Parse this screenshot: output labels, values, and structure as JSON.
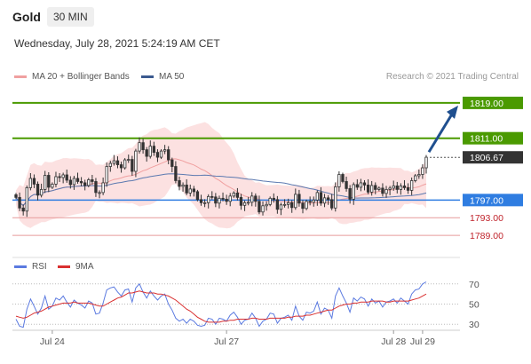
{
  "header": {
    "symbol": "Gold",
    "timeframe": "30 MIN"
  },
  "subtitle": "Wednesday, July 28, 2021 5:24:19 AM CET",
  "legend": {
    "ma20": "MA 20 + Bollinger Bands",
    "ma50": "MA 50",
    "credit": "Research © 2021 Trading Central"
  },
  "rsi_legend": {
    "rsi": "RSI",
    "ma": "9MA"
  },
  "colors": {
    "up": "#3c9b1c",
    "down": "#d0533f",
    "target": "#4a9a00",
    "pivot": "#2f7de1",
    "support": "#c0242c",
    "band": "#f9c9c9",
    "ma20": "#f0a0a0",
    "ma50": "#5b79b0",
    "rsi": "#5b7ae0",
    "rsi_ma": "#d93030",
    "arrow": "#1f4f8f"
  },
  "chart_data": [
    {
      "type": "candlestick",
      "ylim": [
        1784,
        1823
      ],
      "x_ticks": [
        "Jul 24",
        "Jul 27",
        "Jul 28",
        "Jul 29"
      ],
      "current_price": 1806.67,
      "levels": [
        {
          "label": "1819.00",
          "value": 1819.0,
          "kind": "target"
        },
        {
          "label": "1811.00",
          "value": 1811.0,
          "kind": "target"
        },
        {
          "label": "1797.00",
          "value": 1797.0,
          "kind": "pivot"
        },
        {
          "label": "1793.00",
          "value": 1793.0,
          "kind": "support"
        },
        {
          "label": "1789.00",
          "value": 1789.0,
          "kind": "support"
        }
      ],
      "price_label": "1806.67",
      "closes": [
        1797.6,
        1795.2,
        1794.5,
        1799.8,
        1801.9,
        1800.6,
        1798.1,
        1799.4,
        1802.6,
        1799.9,
        1800.6,
        1802.3,
        1802.1,
        1802.7,
        1801.5,
        1800.5,
        1801.9,
        1801.2,
        1800.9,
        1800.3,
        1801.6,
        1801.2,
        1798.7,
        1798.7,
        1800.9,
        1804.6,
        1805.3,
        1805.9,
        1805.0,
        1804.3,
        1806.1,
        1806.2,
        1803.5,
        1808.1,
        1810.0,
        1808.4,
        1806.9,
        1809.2,
        1807.8,
        1806.7,
        1808.1,
        1808.4,
        1806.1,
        1804.6,
        1801.4,
        1800.1,
        1800.4,
        1798.6,
        1799.5,
        1798.9,
        1797.1,
        1796.4,
        1796.4,
        1797.8,
        1797.7,
        1796.3,
        1797.4,
        1797.2,
        1796.7,
        1797.9,
        1798.6,
        1797.6,
        1795.8,
        1796.4,
        1796.5,
        1797.9,
        1796.7,
        1794.3,
        1795.7,
        1796.0,
        1797.4,
        1797.1,
        1794.9,
        1795.9,
        1796.0,
        1796.4,
        1795.3,
        1798.3,
        1796.3,
        1795.1,
        1796.7,
        1796.5,
        1797.0,
        1798.7,
        1796.3,
        1797.5,
        1797.1,
        1795.2,
        1800.0,
        1802.8,
        1801.2,
        1799.6,
        1797.2,
        1800.5,
        1799.9,
        1800.9,
        1800.4,
        1798.8,
        1800.3,
        1799.4,
        1799.7,
        1798.5,
        1799.4,
        1799.7,
        1800.2,
        1799.4,
        1800.2,
        1799.8,
        1799.2,
        1801.4,
        1802.5,
        1802.8,
        1804.3,
        1806.7
      ],
      "rsi": {
        "ticks": [
          70,
          50,
          30
        ],
        "ylim": [
          24,
          76
        ],
        "values": [
          35,
          28,
          27,
          45,
          55,
          48,
          40,
          46,
          58,
          45,
          48,
          56,
          54,
          58,
          52,
          47,
          54,
          51,
          49,
          46,
          53,
          51,
          40,
          41,
          51,
          64,
          66,
          67,
          62,
          58,
          64,
          65,
          52,
          66,
          70,
          62,
          56,
          63,
          58,
          54,
          58,
          60,
          50,
          44,
          36,
          33,
          35,
          31,
          35,
          33,
          29,
          28,
          29,
          36,
          35,
          30,
          36,
          35,
          33,
          39,
          42,
          37,
          30,
          34,
          35,
          41,
          36,
          28,
          33,
          35,
          41,
          40,
          31,
          36,
          37,
          39,
          34,
          48,
          38,
          34,
          42,
          41,
          43,
          52,
          40,
          46,
          44,
          36,
          58,
          66,
          58,
          51,
          42,
          56,
          53,
          57,
          55,
          48,
          55,
          51,
          53,
          47,
          52,
          53,
          55,
          51,
          56,
          53,
          50,
          60,
          64,
          65,
          70,
          72
        ],
        "ma": [
          38,
          37,
          36,
          37,
          39,
          41,
          42,
          43,
          45,
          47,
          48,
          49,
          50,
          51,
          51,
          51,
          52,
          51,
          51,
          51,
          51,
          50,
          49,
          48,
          48,
          50,
          52,
          54,
          56,
          57,
          59,
          61,
          61,
          62,
          63,
          62,
          61,
          61,
          61,
          60,
          60,
          59,
          58,
          56,
          54,
          51,
          48,
          45,
          43,
          40,
          37,
          35,
          33,
          32,
          32,
          32,
          32,
          33,
          33,
          34,
          34,
          35,
          35,
          35,
          35,
          36,
          36,
          35,
          35,
          35,
          36,
          36,
          36,
          36,
          36,
          37,
          37,
          38,
          38,
          38,
          39,
          39,
          40,
          41,
          42,
          43,
          44,
          44,
          46,
          48,
          49,
          50,
          50,
          51,
          51,
          52,
          52,
          52,
          53,
          53,
          53,
          53,
          52,
          52,
          53,
          53,
          53,
          53,
          53,
          54,
          55,
          56,
          58,
          60
        ]
      }
    }
  ]
}
